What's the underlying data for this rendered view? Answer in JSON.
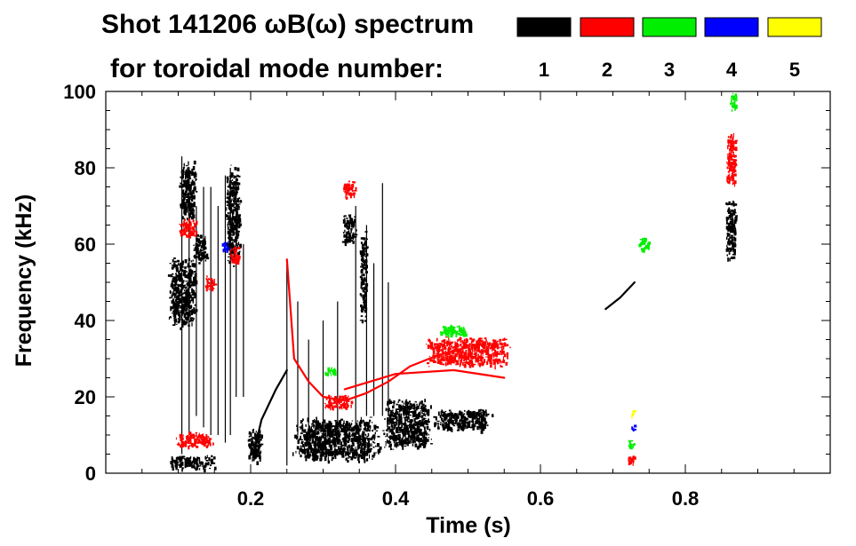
{
  "chart_data": {
    "type": "heatmap",
    "title_line1": "Shot 141206 ωB(ω) spectrum",
    "title_line2": "for toroidal mode number:",
    "xlabel": "Time (s)",
    "ylabel": "Frequency (kHz)",
    "xlim": [
      0.0,
      1.0
    ],
    "ylim": [
      0,
      100
    ],
    "x_ticks": [
      {
        "value": 0.2,
        "label": "0.2"
      },
      {
        "value": 0.4,
        "label": "0.4"
      },
      {
        "value": 0.6,
        "label": "0.6"
      },
      {
        "value": 0.8,
        "label": "0.8"
      }
    ],
    "x_minor_step": 0.05,
    "y_ticks": [
      {
        "value": 0,
        "label": "0"
      },
      {
        "value": 20,
        "label": "20"
      },
      {
        "value": 40,
        "label": "40"
      },
      {
        "value": 60,
        "label": "60"
      },
      {
        "value": 80,
        "label": "80"
      },
      {
        "value": 100,
        "label": "100"
      }
    ],
    "y_minor_step": 5,
    "legend": {
      "placement": "top-right",
      "entries": [
        {
          "n": "1",
          "color": "#000000"
        },
        {
          "n": "2",
          "color": "#ff0000"
        },
        {
          "n": "3",
          "color": "#00ee00"
        },
        {
          "n": "4",
          "color": "#0000ff"
        },
        {
          "n": "5",
          "color": "#ffff00"
        }
      ]
    },
    "regions": [
      {
        "mode": 1,
        "t": [
          0.085,
          0.125
        ],
        "f": [
          38,
          57
        ]
      },
      {
        "mode": 1,
        "t": [
          0.085,
          0.15
        ],
        "f": [
          1,
          5
        ]
      },
      {
        "mode": 1,
        "t": [
          0.12,
          0.14
        ],
        "f": [
          55,
          63
        ]
      },
      {
        "mode": 1,
        "t": [
          0.1,
          0.125
        ],
        "f": [
          66,
          82
        ]
      },
      {
        "mode": 1,
        "t": [
          0.165,
          0.185
        ],
        "f": [
          54,
          81
        ]
      },
      {
        "mode": 1,
        "t": [
          0.195,
          0.215
        ],
        "f": [
          3,
          12
        ]
      },
      {
        "mode": 1,
        "t": [
          0.255,
          0.38
        ],
        "f": [
          3,
          15
        ]
      },
      {
        "mode": 1,
        "t": [
          0.38,
          0.45
        ],
        "f": [
          6,
          20
        ]
      },
      {
        "mode": 1,
        "t": [
          0.45,
          0.535
        ],
        "f": [
          11,
          17
        ]
      },
      {
        "mode": 1,
        "t": [
          0.325,
          0.345
        ],
        "f": [
          60,
          68
        ]
      },
      {
        "mode": 1,
        "t": [
          0.35,
          0.36
        ],
        "f": [
          38,
          65
        ]
      },
      {
        "mode": 1,
        "t": [
          0.855,
          0.87
        ],
        "f": [
          56,
          72
        ]
      },
      {
        "mode": 2,
        "t": [
          0.1,
          0.125
        ],
        "f": [
          62,
          67
        ]
      },
      {
        "mode": 2,
        "t": [
          0.135,
          0.15
        ],
        "f": [
          48,
          52
        ]
      },
      {
        "mode": 2,
        "t": [
          0.17,
          0.185
        ],
        "f": [
          55,
          60
        ]
      },
      {
        "mode": 2,
        "t": [
          0.095,
          0.15
        ],
        "f": [
          7,
          11
        ]
      },
      {
        "mode": 2,
        "t": [
          0.325,
          0.345
        ],
        "f": [
          72,
          77
        ]
      },
      {
        "mode": 2,
        "t": [
          0.3,
          0.34
        ],
        "f": [
          17,
          21
        ]
      },
      {
        "mode": 2,
        "t": [
          0.44,
          0.56
        ],
        "f": [
          28,
          36
        ]
      },
      {
        "mode": 2,
        "t": [
          0.855,
          0.87
        ],
        "f": [
          75,
          90
        ]
      },
      {
        "mode": 2,
        "t": [
          0.72,
          0.73
        ],
        "f": [
          2,
          5
        ]
      },
      {
        "mode": 3,
        "t": [
          0.3,
          0.32
        ],
        "f": [
          26,
          28
        ]
      },
      {
        "mode": 3,
        "t": [
          0.46,
          0.5
        ],
        "f": [
          36,
          39
        ]
      },
      {
        "mode": 3,
        "t": [
          0.735,
          0.75
        ],
        "f": [
          58,
          62
        ]
      },
      {
        "mode": 3,
        "t": [
          0.86,
          0.87
        ],
        "f": [
          95,
          100
        ]
      },
      {
        "mode": 3,
        "t": [
          0.72,
          0.73
        ],
        "f": [
          7,
          9
        ]
      },
      {
        "mode": 4,
        "t": [
          0.725,
          0.73
        ],
        "f": [
          11,
          13
        ]
      },
      {
        "mode": 4,
        "t": [
          0.16,
          0.17
        ],
        "f": [
          58,
          61
        ]
      },
      {
        "mode": 5,
        "t": [
          0.725,
          0.73
        ],
        "f": [
          15,
          17
        ]
      }
    ],
    "lines": [
      {
        "mode": 1,
        "points": [
          [
            0.205,
            6
          ],
          [
            0.215,
            14
          ],
          [
            0.235,
            22
          ],
          [
            0.25,
            27
          ]
        ]
      },
      {
        "mode": 2,
        "points": [
          [
            0.25,
            56
          ],
          [
            0.26,
            30
          ],
          [
            0.28,
            24
          ],
          [
            0.3,
            20
          ],
          [
            0.33,
            19
          ],
          [
            0.36,
            21
          ],
          [
            0.39,
            24
          ],
          [
            0.42,
            28
          ],
          [
            0.46,
            31
          ],
          [
            0.5,
            33
          ]
        ]
      },
      {
        "mode": 2,
        "points": [
          [
            0.33,
            22
          ],
          [
            0.4,
            26
          ],
          [
            0.48,
            27
          ],
          [
            0.55,
            25
          ]
        ]
      },
      {
        "mode": 1,
        "points": [
          [
            0.69,
            43
          ],
          [
            0.71,
            46
          ],
          [
            0.73,
            50
          ]
        ]
      }
    ],
    "streaks": [
      {
        "mode": 1,
        "t": 0.105,
        "f": [
          5,
          83
        ]
      },
      {
        "mode": 1,
        "t": 0.115,
        "f": [
          10,
          80
        ]
      },
      {
        "mode": 1,
        "t": 0.125,
        "f": [
          15,
          70
        ]
      },
      {
        "mode": 1,
        "t": 0.135,
        "f": [
          12,
          75
        ]
      },
      {
        "mode": 1,
        "t": 0.145,
        "f": [
          10,
          75
        ]
      },
      {
        "mode": 1,
        "t": 0.155,
        "f": [
          10,
          70
        ]
      },
      {
        "mode": 1,
        "t": 0.165,
        "f": [
          8,
          78
        ]
      },
      {
        "mode": 1,
        "t": 0.172,
        "f": [
          10,
          80
        ]
      },
      {
        "mode": 1,
        "t": 0.18,
        "f": [
          20,
          78
        ]
      },
      {
        "mode": 1,
        "t": 0.19,
        "f": [
          20,
          60
        ]
      },
      {
        "mode": 1,
        "t": 0.25,
        "f": [
          2,
          55
        ]
      },
      {
        "mode": 1,
        "t": 0.265,
        "f": [
          10,
          45
        ]
      },
      {
        "mode": 1,
        "t": 0.28,
        "f": [
          10,
          35
        ]
      },
      {
        "mode": 1,
        "t": 0.3,
        "f": [
          10,
          40
        ]
      },
      {
        "mode": 1,
        "t": 0.32,
        "f": [
          10,
          45
        ]
      },
      {
        "mode": 1,
        "t": 0.345,
        "f": [
          10,
          70
        ]
      },
      {
        "mode": 1,
        "t": 0.36,
        "f": [
          15,
          65
        ]
      },
      {
        "mode": 1,
        "t": 0.37,
        "f": [
          15,
          55
        ]
      },
      {
        "mode": 1,
        "t": 0.382,
        "f": [
          15,
          76
        ]
      },
      {
        "mode": 1,
        "t": 0.39,
        "f": [
          15,
          50
        ]
      }
    ]
  }
}
